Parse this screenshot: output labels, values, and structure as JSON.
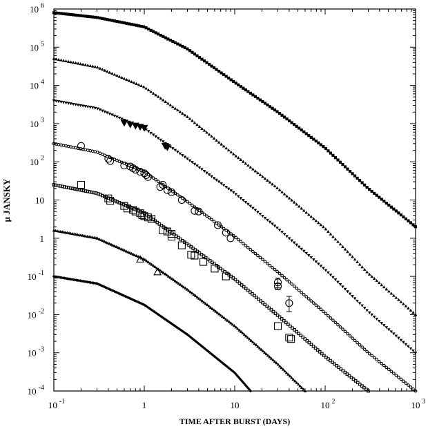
{
  "chart_data": {
    "type": "scatter",
    "title": "",
    "xlabel": "TIME AFTER BURST (DAYS)",
    "ylabel": "μ JANSKY",
    "xscale": "log",
    "yscale": "log",
    "xlim": [
      0.1,
      1000
    ],
    "ylim": [
      0.0001,
      1000000
    ],
    "grid": false,
    "x_ticks": [
      {
        "base": "10",
        "exp": "-1"
      },
      {
        "base": "1",
        "exp": ""
      },
      {
        "base": "10",
        "exp": ""
      },
      {
        "base": "10",
        "exp": "2"
      },
      {
        "base": "10",
        "exp": "3"
      }
    ],
    "y_ticks": [
      {
        "base": "10",
        "exp": "-4"
      },
      {
        "base": "10",
        "exp": "-3"
      },
      {
        "base": "10",
        "exp": "-2"
      },
      {
        "base": "10",
        "exp": "-1"
      },
      {
        "base": "1",
        "exp": ""
      },
      {
        "base": "10",
        "exp": ""
      },
      {
        "base": "10",
        "exp": "2"
      },
      {
        "base": "10",
        "exp": "3"
      },
      {
        "base": "10",
        "exp": "4"
      },
      {
        "base": "10",
        "exp": "5"
      },
      {
        "base": "10",
        "exp": "6"
      }
    ],
    "model_curves": [
      {
        "marker": "square-filled",
        "peak": 800000,
        "curve_points": 150,
        "values": [
          [
            0.1,
            800000
          ],
          [
            0.3,
            600000
          ],
          [
            1,
            340000
          ],
          [
            3,
            90000
          ],
          [
            10,
            12000
          ],
          [
            30,
            2000
          ],
          [
            100,
            230
          ],
          [
            300,
            20
          ],
          [
            1000,
            2
          ]
        ]
      },
      {
        "marker": "triangle-up-filled",
        "peak": 50000,
        "curve_points": 150,
        "values": [
          [
            0.1,
            50000
          ],
          [
            0.3,
            30000
          ],
          [
            1,
            9000
          ],
          [
            3,
            1500
          ],
          [
            10,
            150
          ],
          [
            30,
            20
          ],
          [
            100,
            1.8
          ],
          [
            300,
            0.12
          ],
          [
            1000,
            0.01
          ]
        ]
      },
      {
        "marker": "triangle-down-filled",
        "peak": 4000,
        "curve_points": 150,
        "values": [
          [
            0.1,
            4000
          ],
          [
            0.3,
            2500
          ],
          [
            1,
            750
          ],
          [
            3,
            120
          ],
          [
            10,
            15
          ],
          [
            30,
            1.8
          ],
          [
            100,
            0.15
          ],
          [
            300,
            0.012
          ],
          [
            1000,
            0.001
          ]
        ]
      },
      {
        "marker": "circle-open",
        "peak": 300,
        "curve_points": 150,
        "values": [
          [
            0.1,
            300
          ],
          [
            0.3,
            180
          ],
          [
            1,
            55
          ],
          [
            3,
            9
          ],
          [
            10,
            1.1
          ],
          [
            30,
            0.13
          ],
          [
            100,
            0.011
          ],
          [
            300,
            0.001
          ],
          [
            1000,
            0.0001
          ]
        ]
      },
      {
        "marker": "square-open",
        "peak": 25,
        "curve_points": 150,
        "values": [
          [
            0.1,
            25
          ],
          [
            0.3,
            15
          ],
          [
            1,
            4.5
          ],
          [
            3,
            0.7
          ],
          [
            10,
            0.085
          ],
          [
            30,
            0.0095
          ],
          [
            100,
            0.0008
          ],
          [
            300,
            0.0001
          ]
        ]
      },
      {
        "marker": "triangle-up-filled",
        "peak": 1.6,
        "curve_points": 150,
        "values": [
          [
            0.1,
            1.6
          ],
          [
            0.3,
            1.0
          ],
          [
            1,
            0.28
          ],
          [
            3,
            0.045
          ],
          [
            10,
            0.005
          ],
          [
            30,
            0.0005
          ],
          [
            60,
            0.0001
          ]
        ]
      },
      {
        "marker": "diamond-filled",
        "peak": 0.1,
        "curve_points": 150,
        "values": [
          [
            0.1,
            0.1
          ],
          [
            0.3,
            0.065
          ],
          [
            1,
            0.018
          ],
          [
            3,
            0.003
          ],
          [
            10,
            0.0003
          ],
          [
            15,
            0.0001
          ]
        ]
      }
    ],
    "observations": [
      {
        "marker": "triangle-down-filled",
        "points": [
          [
            0.6,
            1050
          ],
          [
            0.7,
            950
          ],
          [
            0.8,
            880
          ],
          [
            0.9,
            820
          ],
          [
            1.0,
            770
          ],
          [
            1.7,
            260
          ],
          [
            1.8,
            240
          ]
        ]
      },
      {
        "marker": "circle-open",
        "points": [
          {
            "x": 0.2,
            "y": 260
          },
          {
            "x": 0.4,
            "y": 120
          },
          {
            "x": 0.42,
            "y": 105
          },
          {
            "x": 0.6,
            "y": 80
          },
          {
            "x": 0.7,
            "y": 75
          },
          {
            "x": 0.75,
            "y": 68
          },
          {
            "x": 0.8,
            "y": 62
          },
          {
            "x": 0.9,
            "y": 55
          },
          {
            "x": 1.0,
            "y": 50
          },
          {
            "x": 1.05,
            "y": 45
          },
          {
            "x": 1.1,
            "y": 40
          },
          {
            "x": 1.5,
            "y": 22
          },
          {
            "x": 1.6,
            "y": 25
          },
          {
            "x": 1.8,
            "y": 18
          },
          {
            "x": 2.0,
            "y": 16
          },
          {
            "x": 2.6,
            "y": 10
          },
          {
            "x": 3.6,
            "y": 5.2
          },
          {
            "x": 4.0,
            "y": 5.0
          },
          {
            "x": 6.5,
            "y": 2.2
          },
          {
            "x": 8.0,
            "y": 1.4
          },
          {
            "x": 9.0,
            "y": 1.0
          },
          {
            "x": 30,
            "y": 0.07,
            "err": [
              0.05,
              0.09
            ]
          },
          {
            "x": 30,
            "y": 0.055,
            "err": [
              0.045,
              0.065
            ]
          },
          {
            "x": 40,
            "y": 0.02,
            "err": [
              0.012,
              0.03
            ]
          }
        ]
      },
      {
        "marker": "square-open",
        "points": [
          [
            0.2,
            25
          ],
          [
            0.4,
            11
          ],
          [
            0.42,
            9.5
          ],
          [
            0.6,
            7.0
          ],
          [
            0.65,
            6.0
          ],
          [
            0.75,
            5.5
          ],
          [
            0.8,
            5.0
          ],
          [
            0.9,
            4.5
          ],
          [
            0.95,
            4.0
          ],
          [
            1.0,
            3.8
          ],
          [
            1.1,
            3.5
          ],
          [
            1.2,
            3.2
          ],
          [
            1.6,
            1.6
          ],
          [
            1.8,
            1.5
          ],
          [
            2.0,
            1.3
          ],
          [
            2.0,
            1.1
          ],
          [
            2.6,
            0.65
          ],
          [
            3.3,
            0.37
          ],
          [
            3.6,
            0.35
          ],
          [
            4.5,
            0.24
          ],
          [
            6.0,
            0.16
          ],
          [
            8.0,
            0.1
          ],
          [
            30,
            0.005
          ],
          [
            40,
            0.0025
          ],
          [
            42,
            0.0023
          ]
        ]
      },
      {
        "marker": "triangle-up-open",
        "points": [
          [
            0.9,
            0.28
          ],
          [
            1.4,
            0.13
          ]
        ]
      }
    ]
  }
}
